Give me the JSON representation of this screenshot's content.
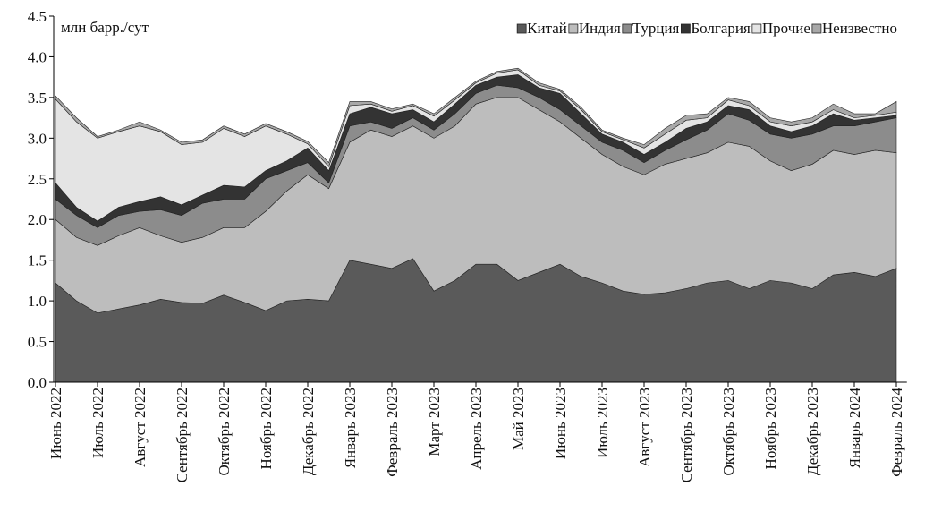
{
  "chart_data": {
    "type": "stacked_area",
    "y_label": "млн барр./сут",
    "categories": [
      "Июнь 2022",
      null,
      "Июль 2022",
      null,
      "Август 2022",
      null,
      "Сентябрь 2022",
      null,
      "Октябрь 2022",
      null,
      "Ноябрь 2022",
      null,
      "Декабрь 2022",
      null,
      "Январь 2023",
      null,
      "Февраль 2023",
      null,
      "Март 2023",
      null,
      "Апрель 2023",
      null,
      "Май 2023",
      null,
      "Июнь 2023",
      null,
      "Июль 2023",
      null,
      "Август 2023",
      null,
      "Сентябрь 2023",
      null,
      "Октябрь 2023",
      null,
      "Ноябрь 2023",
      null,
      "Декабрь 2023",
      null,
      "Январь 2024",
      null,
      "Февраль 2024"
    ],
    "series": [
      {
        "name": "Китай",
        "color": "#5a5a5a",
        "values": [
          1.22,
          1.0,
          0.85,
          0.9,
          0.95,
          1.02,
          0.98,
          0.97,
          1.07,
          0.98,
          0.88,
          1.0,
          1.02,
          1.0,
          1.5,
          1.45,
          1.4,
          1.52,
          1.12,
          1.25,
          1.45,
          1.45,
          1.25,
          1.35,
          1.45,
          1.3,
          1.22,
          1.12,
          1.08,
          1.1,
          1.15,
          1.22,
          1.25,
          1.15,
          1.25,
          1.22,
          1.15,
          1.32,
          1.35,
          1.3,
          1.4
        ]
      },
      {
        "name": "Индия",
        "color": "#bdbdbd",
        "values": [
          0.78,
          0.78,
          0.83,
          0.9,
          0.95,
          0.78,
          0.74,
          0.81,
          0.83,
          0.92,
          1.22,
          1.35,
          1.53,
          1.38,
          1.45,
          1.65,
          1.62,
          1.63,
          1.88,
          1.9,
          1.97,
          2.05,
          2.25,
          2.0,
          1.75,
          1.7,
          1.58,
          1.53,
          1.47,
          1.58,
          1.6,
          1.6,
          1.7,
          1.75,
          1.47,
          1.38,
          1.53,
          1.53,
          1.45,
          1.55,
          1.42
        ]
      },
      {
        "name": "Турция",
        "color": "#8c8c8c",
        "values": [
          0.25,
          0.27,
          0.22,
          0.25,
          0.2,
          0.32,
          0.33,
          0.42,
          0.35,
          0.35,
          0.4,
          0.25,
          0.15,
          0.07,
          0.2,
          0.1,
          0.1,
          0.1,
          0.1,
          0.15,
          0.13,
          0.15,
          0.12,
          0.15,
          0.15,
          0.15,
          0.15,
          0.2,
          0.15,
          0.17,
          0.23,
          0.28,
          0.35,
          0.32,
          0.33,
          0.4,
          0.37,
          0.3,
          0.35,
          0.35,
          0.43
        ]
      },
      {
        "name": "Болгария",
        "color": "#333333",
        "values": [
          0.2,
          0.1,
          0.08,
          0.1,
          0.12,
          0.16,
          0.13,
          0.1,
          0.17,
          0.15,
          0.1,
          0.12,
          0.18,
          0.15,
          0.15,
          0.18,
          0.18,
          0.1,
          0.1,
          0.12,
          0.1,
          0.1,
          0.16,
          0.12,
          0.2,
          0.15,
          0.1,
          0.1,
          0.1,
          0.1,
          0.14,
          0.1,
          0.1,
          0.13,
          0.1,
          0.08,
          0.1,
          0.15,
          0.07,
          0.05,
          0.03
        ]
      },
      {
        "name": "Прочие",
        "color": "#e4e4e4",
        "values": [
          1.03,
          1.05,
          1.02,
          0.93,
          0.93,
          0.8,
          0.74,
          0.65,
          0.7,
          0.62,
          0.55,
          0.33,
          0.05,
          0.05,
          0.1,
          0.04,
          0.03,
          0.05,
          0.07,
          0.05,
          0.03,
          0.05,
          0.06,
          0.03,
          0.03,
          0.05,
          0.03,
          0.03,
          0.08,
          0.1,
          0.1,
          0.05,
          0.07,
          0.05,
          0.05,
          0.07,
          0.05,
          0.05,
          0.03,
          0.03,
          0.04
        ]
      },
      {
        "name": "Неизвестно",
        "color": "#a8a8a8",
        "values": [
          0.04,
          0.05,
          0.02,
          0.02,
          0.05,
          0.02,
          0.03,
          0.03,
          0.03,
          0.03,
          0.03,
          0.03,
          0.03,
          0.05,
          0.05,
          0.03,
          0.03,
          0.02,
          0.03,
          0.03,
          0.02,
          0.02,
          0.02,
          0.03,
          0.02,
          0.03,
          0.02,
          0.02,
          0.04,
          0.07,
          0.06,
          0.05,
          0.03,
          0.05,
          0.05,
          0.05,
          0.05,
          0.07,
          0.05,
          0.02,
          0.13
        ]
      }
    ],
    "ylim": [
      0,
      4.5
    ],
    "yticks": [
      {
        "value": 0,
        "label": "0.0"
      },
      0.5,
      {
        "value": 1,
        "label": "1.0"
      },
      1.5,
      {
        "value": 2,
        "label": "2.0"
      },
      2.5,
      {
        "value": 3,
        "label": "3.0"
      },
      3.5,
      {
        "value": 4,
        "label": "4.0"
      },
      4.5
    ],
    "legend": "top-right"
  }
}
